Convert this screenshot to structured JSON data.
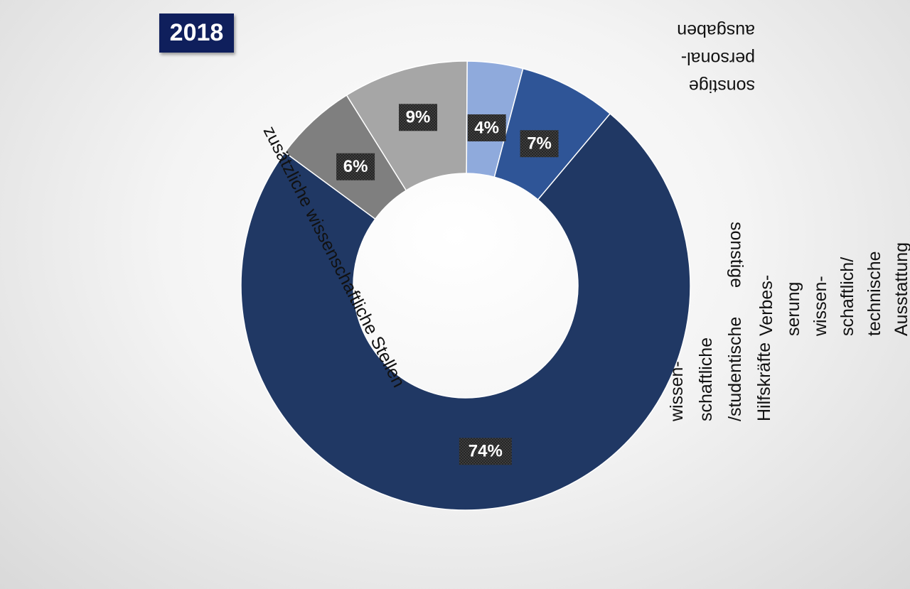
{
  "badge": {
    "year": "2018"
  },
  "chart_data": {
    "type": "pie",
    "subtype": "donut",
    "title": "2018",
    "categories": [
      "zusätzliche wissenschaftliche Stellen",
      "sonstige personal-ausgaben",
      "sonstige",
      "Verbes-serung wissen-schaftlich/technische Ausstattung",
      "wissen-schaftliche /studentische Hilfskräfte"
    ],
    "values": [
      74,
      6,
      9,
      4,
      7
    ],
    "value_labels": [
      "74%",
      "6%",
      "9%",
      "4%",
      "7%"
    ],
    "colors": [
      "#203864",
      "#7f7f7f",
      "#a6a6a6",
      "#8faadc",
      "#2f5597"
    ],
    "label_lines": [
      [
        "zusätzliche wissenschaftliche Stellen"
      ],
      [
        "sonstige",
        "personal-",
        "ausgaben"
      ],
      [
        "sonstige"
      ],
      [
        "Verbes-",
        "serung",
        "wissen-",
        "schaftlich/",
        "technische",
        "Ausstattung"
      ],
      [
        "wissen-",
        "schaftliche",
        "/studentische",
        "Hilfskräfte"
      ]
    ]
  }
}
